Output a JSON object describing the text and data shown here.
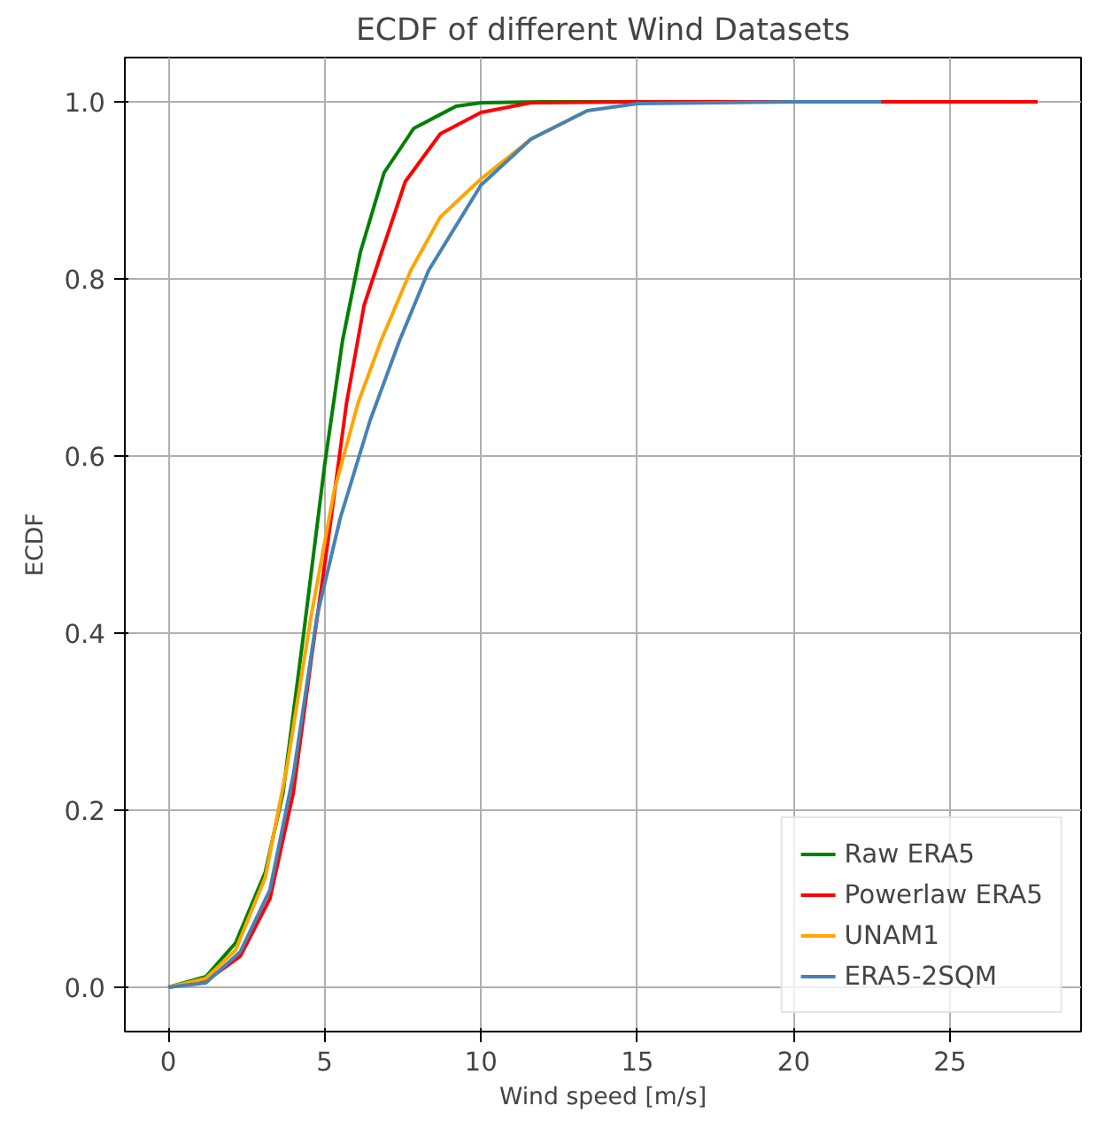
{
  "chart_data": {
    "type": "line",
    "title": "ECDF of different Wind Datasets",
    "xlabel": "Wind speed [m/s]",
    "ylabel": "ECDF",
    "xlim": [
      -1.39,
      29.19
    ],
    "ylim": [
      -0.05,
      1.05
    ],
    "xticks": [
      0,
      5,
      10,
      15,
      20,
      25
    ],
    "yticks": [
      {
        "value": 0,
        "label": "0.0"
      },
      {
        "value": 0.2,
        "label": "0.2"
      },
      {
        "value": 0.4,
        "label": "0.4"
      },
      {
        "value": 0.6,
        "label": "0.6"
      },
      {
        "value": 0.8,
        "label": "0.8"
      },
      {
        "value": 1,
        "label": "1.0"
      }
    ],
    "grid": true,
    "legend": "bottom right",
    "marker": "none",
    "line_style": "solid",
    "series": [
      {
        "name": "Raw ERA5",
        "color": "#008000",
        "x": [
          0,
          1.2,
          2.15,
          3.1,
          3.67,
          4.33,
          5.0,
          5.57,
          6.14,
          6.9,
          7.85,
          9.2,
          10,
          12,
          15
        ],
        "values": [
          0,
          0.012,
          0.05,
          0.13,
          0.22,
          0.4,
          0.59,
          0.73,
          0.83,
          0.92,
          0.97,
          0.995,
          0.999,
          1.0,
          1.0
        ]
      },
      {
        "name": "Powerlaw ERA5",
        "color": "#ff0000",
        "x": [
          0,
          1.2,
          2.3,
          3.25,
          4.0,
          4.57,
          5.13,
          5.7,
          6.26,
          6.82,
          7.58,
          8.7,
          10,
          11.6,
          15,
          27.8
        ],
        "values": [
          0,
          0.007,
          0.035,
          0.1,
          0.22,
          0.37,
          0.51,
          0.66,
          0.77,
          0.83,
          0.91,
          0.964,
          0.988,
          0.999,
          1.0,
          1.0
        ]
      },
      {
        "name": "UNAM1",
        "color": "#ffa500",
        "x": [
          0,
          1.2,
          2.15,
          3.1,
          3.8,
          4.57,
          5.3,
          6.07,
          6.8,
          7.76,
          8.7,
          10,
          11.6,
          13.4
        ],
        "values": [
          0,
          0.01,
          0.042,
          0.124,
          0.25,
          0.42,
          0.56,
          0.66,
          0.73,
          0.81,
          0.87,
          0.913,
          0.958,
          0.99
        ]
      },
      {
        "name": "ERA5-2SQM",
        "color": "#4682b4",
        "x": [
          0,
          1.2,
          2.3,
          3.25,
          4.0,
          4.76,
          5.5,
          6.45,
          7.39,
          8.33,
          10,
          11.6,
          13.4,
          15,
          20,
          22.8
        ],
        "values": [
          0,
          0.005,
          0.04,
          0.11,
          0.24,
          0.42,
          0.53,
          0.64,
          0.73,
          0.81,
          0.906,
          0.958,
          0.99,
          0.998,
          1.0,
          1.0
        ]
      }
    ]
  }
}
